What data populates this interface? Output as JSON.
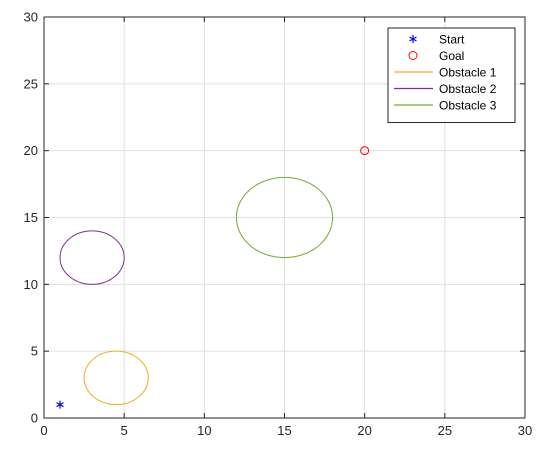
{
  "chart_data": {
    "type": "scatter",
    "xlim": [
      0,
      30
    ],
    "ylim": [
      0,
      30
    ],
    "xticks": [
      0,
      5,
      10,
      15,
      20,
      25,
      30
    ],
    "yticks": [
      0,
      5,
      10,
      15,
      20,
      25,
      30
    ],
    "grid": true,
    "legend_position": "top-right",
    "series": [
      {
        "name": "Start",
        "marker": "asterisk",
        "color": "#0000ff",
        "points": [
          [
            1,
            1
          ]
        ]
      },
      {
        "name": "Goal",
        "marker": "circle",
        "color": "#ff0000",
        "points": [
          [
            20,
            20
          ]
        ]
      },
      {
        "name": "Obstacle 1",
        "shape": "circle",
        "color": "#edb120",
        "center": [
          4.5,
          3
        ],
        "radius": 2
      },
      {
        "name": "Obstacle 2",
        "shape": "circle",
        "color": "#7e2f8e",
        "center": [
          3,
          12
        ],
        "radius": 2
      },
      {
        "name": "Obstacle 3",
        "shape": "circle",
        "color": "#77ac30",
        "center": [
          15,
          15
        ],
        "radius": 3
      }
    ]
  }
}
